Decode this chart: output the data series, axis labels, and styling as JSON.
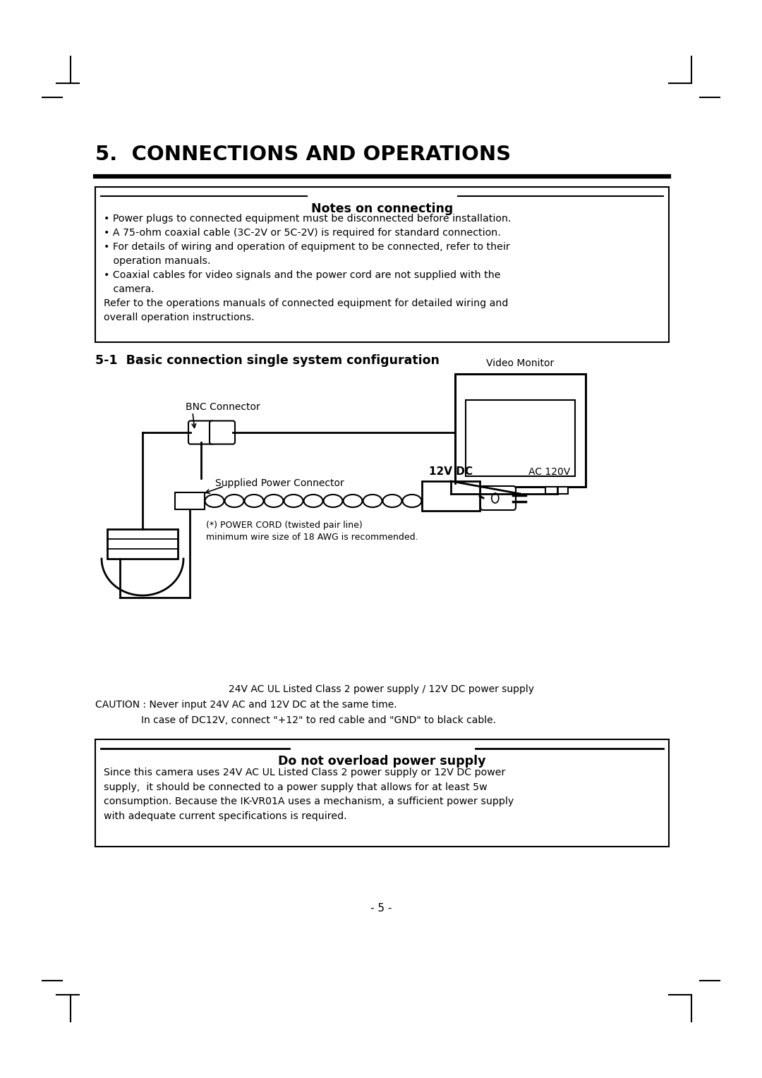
{
  "bg_color": "#ffffff",
  "title": "5.  CONNECTIONS AND OPERATIONS",
  "notes_title": "Notes on connecting",
  "section_title": "5-1  Basic connection single system configuration",
  "notes_text": "• Power plugs to connected equipment must be disconnected before installation.\n• A 75-ohm coaxial cable (3C-2V or 5C-2V) is required for standard connection.\n• For details of wiring and operation of equipment to be connected, refer to their\n   operation manuals.\n• Coaxial cables for video signals and the power cord are not supplied with the\n   camera.\nRefer to the operations manuals of connected equipment for detailed wiring and\noverall operation instructions.",
  "lbl_bnc": "BNC Connector",
  "lbl_monitor": "Video Monitor",
  "lbl_power_conn": "Supplied Power Connector",
  "lbl_power_cord": "(*) POWER CORD (twisted pair line)\nminimum wire size of 18 AWG is recommended.",
  "lbl_12vdc": "12V DC",
  "lbl_ac120v": "AC 120V",
  "caution1": "24V AC UL Listed Class 2 power supply / 12V DC power supply",
  "caution2": "CAUTION : Never input 24V AC and 12V DC at the same time.",
  "caution3": "In case of DC12V, connect \"+12\" to red cable and \"GND\" to black cable.",
  "warning_title": "Do not overload power supply",
  "warning_text": "Since this camera uses 24V AC UL Listed Class 2 power supply or 12V DC power\nsupply,  it should be connected to a power supply that allows for at least 5w\nconsumption. Because the IK-VR01A uses a mechanism, a sufficient power supply\nwith adequate current specifications is required.",
  "page_number": "- 5 -"
}
